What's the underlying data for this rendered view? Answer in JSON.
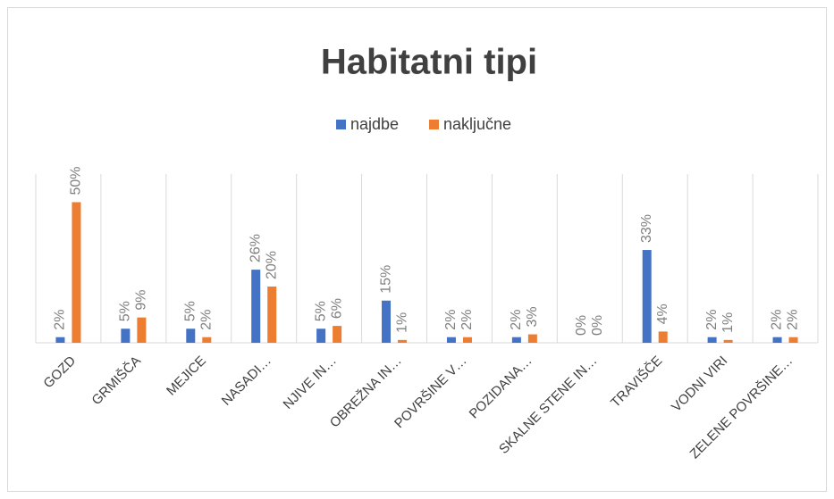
{
  "chart_data": {
    "type": "bar",
    "title": "Habitatni tipi",
    "categories": [
      "GOZD",
      "GRMIŠČA",
      "MEJICE",
      "NASADI…",
      "NJIVE IN…",
      "OBREŽNA IN…",
      "POVRŠINE V…",
      "POZIDANA…",
      "SKALNE STENE IN…",
      "TRAVIŠČE",
      "VODNI VIRI",
      "ZELENE POVRŠINE…"
    ],
    "series": [
      {
        "name": "najdbe",
        "color": "#4472c4",
        "values": [
          2,
          5,
          5,
          26,
          5,
          15,
          2,
          2,
          0,
          33,
          2,
          2
        ],
        "value_labels": [
          "2%",
          "5%",
          "5%",
          "26%",
          "5%",
          "15%",
          "2%",
          "2%",
          "0%",
          "33%",
          "2%",
          "2%"
        ]
      },
      {
        "name": "naključne",
        "color": "#ed7d31",
        "values": [
          50,
          9,
          2,
          20,
          6,
          1,
          2,
          3,
          0,
          4,
          1,
          2
        ],
        "value_labels": [
          "50%",
          "9%",
          "2%",
          "20%",
          "6%",
          "1%",
          "2%",
          "3%",
          "0%",
          "4%",
          "1%",
          "2%"
        ]
      }
    ],
    "ylim": [
      0,
      60
    ],
    "legend": "top"
  }
}
